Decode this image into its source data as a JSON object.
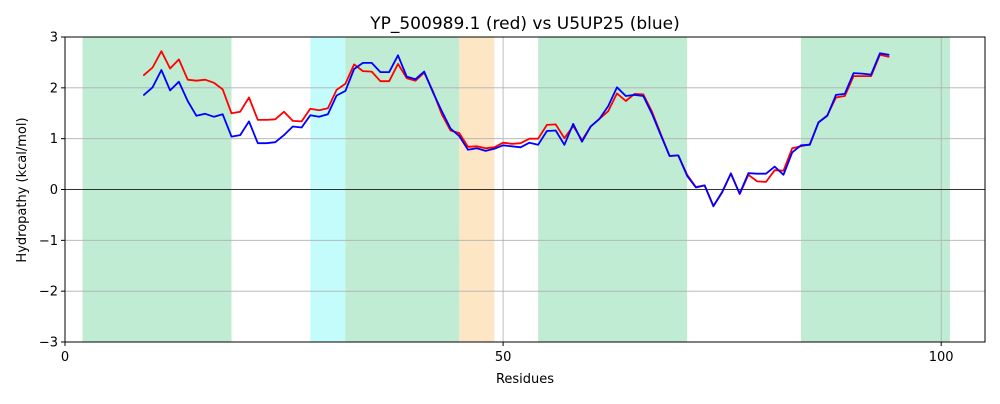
{
  "chart_data": {
    "type": "line",
    "title": "YP_500989.1 (red) vs U5UP25 (blue)",
    "xlabel": "Residues",
    "ylabel": "Hydropathy (kcal/mol)",
    "xlim": [
      0,
      105
    ],
    "ylim": [
      -3,
      3
    ],
    "x_ticks": [
      0,
      50,
      100
    ],
    "y_ticks": [
      -3,
      -2,
      -1,
      0,
      1,
      2,
      3
    ],
    "grid": true,
    "regions": [
      {
        "start": 2,
        "end": 19,
        "color": "#c0ecd4"
      },
      {
        "start": 28,
        "end": 32,
        "color": "#c4fcfc"
      },
      {
        "start": 32,
        "end": 45,
        "color": "#c0ecd4"
      },
      {
        "start": 45,
        "end": 49,
        "color": "#fde6c4"
      },
      {
        "start": 54,
        "end": 71,
        "color": "#c0ecd4"
      },
      {
        "start": 84,
        "end": 101,
        "color": "#c0ecd4"
      }
    ],
    "x": [
      9,
      10,
      11,
      12,
      13,
      14,
      15,
      16,
      17,
      18,
      19,
      20,
      21,
      22,
      23,
      24,
      25,
      26,
      27,
      28,
      29,
      30,
      31,
      32,
      33,
      34,
      35,
      36,
      37,
      38,
      39,
      40,
      41,
      42,
      43,
      44,
      45,
      46,
      47,
      48,
      49,
      50,
      51,
      52,
      53,
      54,
      55,
      56,
      57,
      58,
      59,
      60,
      61,
      62,
      63,
      64,
      65,
      66,
      67,
      68,
      69,
      70,
      71,
      72,
      73,
      74,
      75,
      76,
      77,
      78,
      79,
      80,
      81,
      82,
      83,
      84,
      85,
      86,
      87,
      88,
      89,
      90,
      91,
      92,
      93,
      94
    ],
    "series": [
      {
        "color": "#ff0000",
        "values": [
          2.25,
          2.4,
          2.72,
          2.38,
          2.56,
          2.16,
          2.14,
          2.16,
          2.1,
          1.97,
          1.5,
          1.53,
          1.81,
          1.37,
          1.37,
          1.38,
          1.53,
          1.35,
          1.34,
          1.59,
          1.56,
          1.6,
          1.96,
          2.08,
          2.46,
          2.33,
          2.32,
          2.13,
          2.13,
          2.47,
          2.19,
          2.14,
          2.3,
          1.93,
          1.48,
          1.16,
          1.11,
          0.84,
          0.85,
          0.81,
          0.83,
          0.92,
          0.9,
          0.91,
          1.0,
          1.0,
          1.27,
          1.28,
          1.01,
          1.25,
          0.97,
          1.24,
          1.39,
          1.54,
          1.89,
          1.74,
          1.88,
          1.87,
          1.53,
          1.09,
          0.66,
          0.67,
          0.29,
          0.05,
          0.08,
          -0.32,
          -0.06,
          0.32,
          -0.09,
          0.29,
          0.16,
          0.15,
          0.38,
          0.37,
          0.81,
          0.85,
          0.89,
          1.32,
          1.46,
          1.81,
          1.84,
          2.23,
          2.23,
          2.23,
          2.65,
          2.61
        ]
      },
      {
        "color": "#0000ff",
        "values": [
          1.86,
          2.01,
          2.35,
          1.95,
          2.12,
          1.74,
          1.45,
          1.49,
          1.43,
          1.48,
          1.04,
          1.07,
          1.34,
          0.91,
          0.91,
          0.93,
          1.07,
          1.24,
          1.22,
          1.46,
          1.43,
          1.48,
          1.85,
          1.94,
          2.37,
          2.49,
          2.49,
          2.31,
          2.31,
          2.64,
          2.22,
          2.17,
          2.32,
          1.91,
          1.54,
          1.2,
          1.05,
          0.78,
          0.81,
          0.76,
          0.8,
          0.87,
          0.85,
          0.83,
          0.92,
          0.88,
          1.15,
          1.16,
          0.88,
          1.29,
          0.94,
          1.24,
          1.39,
          1.64,
          2.01,
          1.84,
          1.86,
          1.84,
          1.49,
          1.07,
          0.66,
          0.67,
          0.27,
          0.04,
          0.08,
          -0.33,
          -0.05,
          0.31,
          -0.08,
          0.32,
          0.31,
          0.31,
          0.45,
          0.29,
          0.73,
          0.87,
          0.88,
          1.32,
          1.45,
          1.86,
          1.88,
          2.29,
          2.28,
          2.26,
          2.68,
          2.65
        ]
      }
    ]
  }
}
